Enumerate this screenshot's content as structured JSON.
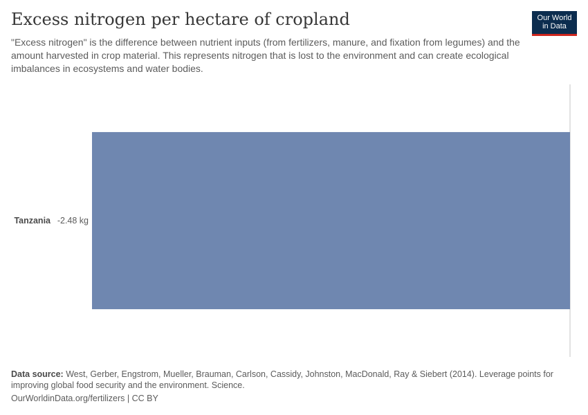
{
  "header": {
    "title": "Excess nitrogen per hectare of cropland",
    "subtitle": "\"Excess nitrogen\" is the difference between nutrient inputs (from fertilizers, manure, and fixation from legumes) and the amount harvested in crop material. This represents nitrogen that is lost to the environment and can create ecological imbalances in ecosystems and water bodies.",
    "logo_line1": "Our World",
    "logo_line2": "in Data"
  },
  "footer": {
    "source_label": "Data source:",
    "source_text": " West, Gerber, Engstrom, Mueller, Brauman, Carlson, Cassidy, Johnston, MacDonald, Ray & Siebert (2014). Leverage points for improving global food security and the environment. Science.",
    "url_text": "OurWorldinData.org/fertilizers | CC BY"
  },
  "colors": {
    "bar": "#6f87b0",
    "zero_line": "#d9d9d9",
    "text": "#5b5b5b"
  },
  "chart_data": {
    "type": "bar",
    "orientation": "horizontal",
    "categories": [
      "Tanzania"
    ],
    "values": [
      -2.48
    ],
    "value_labels": [
      "-2.48 kg"
    ],
    "unit": "kg",
    "xlim": [
      -2.48,
      0
    ]
  }
}
